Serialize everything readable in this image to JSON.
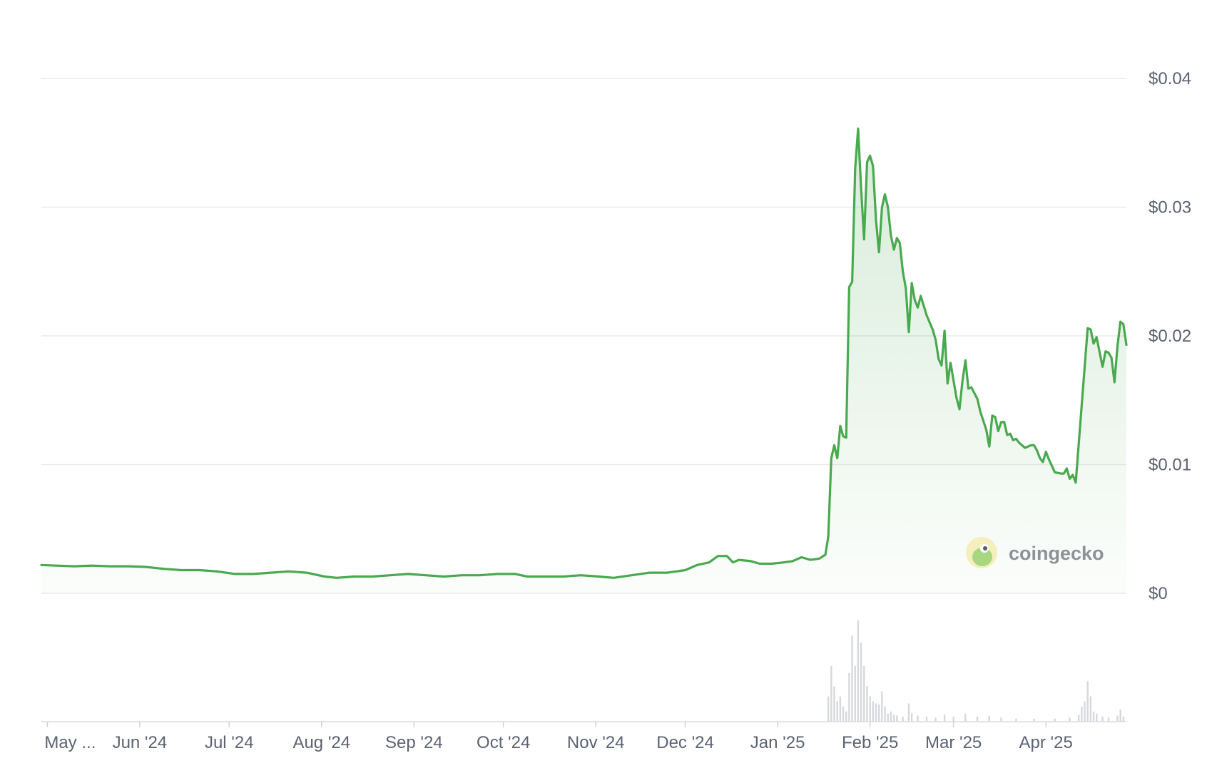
{
  "chart_data": {
    "type": "area",
    "y_axis": {
      "ticks": [
        "$0",
        "$0.01",
        "$0.02",
        "$0.03",
        "$0.04"
      ],
      "tick_values": [
        0,
        0.01,
        0.02,
        0.03,
        0.04
      ],
      "ylim": [
        0,
        0.04
      ],
      "position": "right"
    },
    "x_axis": {
      "ticks": [
        "May ...",
        "Jun '24",
        "Jul '24",
        "Aug '24",
        "Sep '24",
        "Oct '24",
        "Nov '24",
        "Dec '24",
        "Jan '25",
        "Feb '25",
        "Mar '25",
        "Apr '25"
      ],
      "tick_dates": [
        "2024-05-01",
        "2024-06-01",
        "2024-07-01",
        "2024-08-01",
        "2024-09-01",
        "2024-10-01",
        "2024-11-01",
        "2024-12-01",
        "2025-01-01",
        "2025-02-01",
        "2025-03-01",
        "2025-04-01"
      ],
      "range": [
        "2024-04-29",
        "2025-04-28"
      ]
    },
    "grid": true,
    "line_color": "#4aa84f",
    "fill_color": "#4aa84f",
    "volume_color": "#d6d8dc",
    "brand": "coingecko",
    "series": [
      {
        "points": [
          [
            "2024-04-29",
            0.0022
          ],
          [
            "2024-05-04",
            0.00215
          ],
          [
            "2024-05-10",
            0.0021
          ],
          [
            "2024-05-16",
            0.00215
          ],
          [
            "2024-05-22",
            0.0021
          ],
          [
            "2024-05-28",
            0.0021
          ],
          [
            "2024-06-03",
            0.00205
          ],
          [
            "2024-06-09",
            0.0019
          ],
          [
            "2024-06-15",
            0.0018
          ],
          [
            "2024-06-21",
            0.0018
          ],
          [
            "2024-06-27",
            0.0017
          ],
          [
            "2024-07-03",
            0.0015
          ],
          [
            "2024-07-09",
            0.0015
          ],
          [
            "2024-07-15",
            0.0016
          ],
          [
            "2024-07-21",
            0.0017
          ],
          [
            "2024-07-27",
            0.0016
          ],
          [
            "2024-08-02",
            0.0013
          ],
          [
            "2024-08-06",
            0.0012
          ],
          [
            "2024-08-12",
            0.0013
          ],
          [
            "2024-08-18",
            0.0013
          ],
          [
            "2024-08-24",
            0.0014
          ],
          [
            "2024-08-30",
            0.0015
          ],
          [
            "2024-09-05",
            0.0014
          ],
          [
            "2024-09-11",
            0.0013
          ],
          [
            "2024-09-17",
            0.0014
          ],
          [
            "2024-09-23",
            0.0014
          ],
          [
            "2024-09-29",
            0.0015
          ],
          [
            "2024-10-05",
            0.0015
          ],
          [
            "2024-10-09",
            0.0013
          ],
          [
            "2024-10-15",
            0.0013
          ],
          [
            "2024-10-21",
            0.0013
          ],
          [
            "2024-10-27",
            0.0014
          ],
          [
            "2024-11-02",
            0.0013
          ],
          [
            "2024-11-07",
            0.0012
          ],
          [
            "2024-11-13",
            0.0014
          ],
          [
            "2024-11-19",
            0.0016
          ],
          [
            "2024-11-25",
            0.0016
          ],
          [
            "2024-12-01",
            0.0018
          ],
          [
            "2024-12-05",
            0.0022
          ],
          [
            "2024-12-09",
            0.0024
          ],
          [
            "2024-12-12",
            0.0029
          ],
          [
            "2024-12-15",
            0.0029
          ],
          [
            "2024-12-17",
            0.0024
          ],
          [
            "2024-12-19",
            0.0026
          ],
          [
            "2024-12-23",
            0.0025
          ],
          [
            "2024-12-26",
            0.0023
          ],
          [
            "2024-12-30",
            0.0023
          ],
          [
            "2025-01-03",
            0.0024
          ],
          [
            "2025-01-06",
            0.0025
          ],
          [
            "2025-01-09",
            0.0028
          ],
          [
            "2025-01-12",
            0.0026
          ],
          [
            "2025-01-15",
            0.0027
          ],
          [
            "2025-01-17",
            0.003
          ],
          [
            "2025-01-18",
            0.0044
          ],
          [
            "2025-01-19",
            0.0105
          ],
          [
            "2025-01-20",
            0.0115
          ],
          [
            "2025-01-21",
            0.0105
          ],
          [
            "2025-01-22",
            0.013
          ],
          [
            "2025-01-23",
            0.0122
          ],
          [
            "2025-01-24",
            0.0121
          ],
          [
            "2025-01-25",
            0.0238
          ],
          [
            "2025-01-26",
            0.0242
          ],
          [
            "2025-01-27",
            0.033
          ],
          [
            "2025-01-28",
            0.0361
          ],
          [
            "2025-01-29",
            0.0315
          ],
          [
            "2025-01-30",
            0.0275
          ],
          [
            "2025-01-31",
            0.0335
          ],
          [
            "2025-02-01",
            0.034
          ],
          [
            "2025-02-02",
            0.0332
          ],
          [
            "2025-02-03",
            0.029
          ],
          [
            "2025-02-04",
            0.0265
          ],
          [
            "2025-02-05",
            0.03
          ],
          [
            "2025-02-06",
            0.031
          ],
          [
            "2025-02-07",
            0.03
          ],
          [
            "2025-02-08",
            0.0278
          ],
          [
            "2025-02-09",
            0.0267
          ],
          [
            "2025-02-10",
            0.0276
          ],
          [
            "2025-02-11",
            0.0272
          ],
          [
            "2025-02-12",
            0.025
          ],
          [
            "2025-02-13",
            0.0237
          ],
          [
            "2025-02-14",
            0.0203
          ],
          [
            "2025-02-15",
            0.0241
          ],
          [
            "2025-02-16",
            0.0228
          ],
          [
            "2025-02-17",
            0.0222
          ],
          [
            "2025-02-18",
            0.0231
          ],
          [
            "2025-02-20",
            0.0216
          ],
          [
            "2025-02-22",
            0.0205
          ],
          [
            "2025-02-23",
            0.0197
          ],
          [
            "2025-02-24",
            0.0182
          ],
          [
            "2025-02-25",
            0.0177
          ],
          [
            "2025-02-26",
            0.0204
          ],
          [
            "2025-02-27",
            0.0163
          ],
          [
            "2025-02-28",
            0.0179
          ],
          [
            "2025-03-02",
            0.0152
          ],
          [
            "2025-03-03",
            0.0143
          ],
          [
            "2025-03-04",
            0.0165
          ],
          [
            "2025-03-05",
            0.0181
          ],
          [
            "2025-03-06",
            0.0159
          ],
          [
            "2025-03-07",
            0.016
          ],
          [
            "2025-03-09",
            0.0151
          ],
          [
            "2025-03-10",
            0.0141
          ],
          [
            "2025-03-12",
            0.0127
          ],
          [
            "2025-03-13",
            0.0114
          ],
          [
            "2025-03-14",
            0.0138
          ],
          [
            "2025-03-15",
            0.0137
          ],
          [
            "2025-03-16",
            0.0126
          ],
          [
            "2025-03-17",
            0.0133
          ],
          [
            "2025-03-18",
            0.0133
          ],
          [
            "2025-03-19",
            0.0123
          ],
          [
            "2025-03-20",
            0.0124
          ],
          [
            "2025-03-21",
            0.0119
          ],
          [
            "2025-03-22",
            0.012
          ],
          [
            "2025-03-23",
            0.0117
          ],
          [
            "2025-03-25",
            0.0113
          ],
          [
            "2025-03-27",
            0.0115
          ],
          [
            "2025-03-28",
            0.0115
          ],
          [
            "2025-03-29",
            0.0111
          ],
          [
            "2025-03-30",
            0.0105
          ],
          [
            "2025-03-31",
            0.0102
          ],
          [
            "2025-04-01",
            0.011
          ],
          [
            "2025-04-02",
            0.0104
          ],
          [
            "2025-04-04",
            0.0094
          ],
          [
            "2025-04-06",
            0.0093
          ],
          [
            "2025-04-07",
            0.0093
          ],
          [
            "2025-04-08",
            0.0097
          ],
          [
            "2025-04-09",
            0.0089
          ],
          [
            "2025-04-10",
            0.0092
          ],
          [
            "2025-04-11",
            0.0086
          ],
          [
            "2025-04-15",
            0.0206
          ],
          [
            "2025-04-16",
            0.0205
          ],
          [
            "2025-04-17",
            0.0194
          ],
          [
            "2025-04-18",
            0.0199
          ],
          [
            "2025-04-20",
            0.0176
          ],
          [
            "2025-04-21",
            0.0188
          ],
          [
            "2025-04-22",
            0.0187
          ],
          [
            "2025-04-23",
            0.0183
          ],
          [
            "2025-04-24",
            0.0164
          ],
          [
            "2025-04-25",
            0.0192
          ],
          [
            "2025-04-26",
            0.0211
          ],
          [
            "2025-04-27",
            0.0209
          ],
          [
            "2025-04-28",
            0.0193
          ]
        ]
      }
    ],
    "volume": [
      [
        "2025-01-18",
        0.25
      ],
      [
        "2025-01-19",
        0.55
      ],
      [
        "2025-01-20",
        0.35
      ],
      [
        "2025-01-21",
        0.2
      ],
      [
        "2025-01-22",
        0.25
      ],
      [
        "2025-01-23",
        0.15
      ],
      [
        "2025-01-24",
        0.1
      ],
      [
        "2025-01-25",
        0.48
      ],
      [
        "2025-01-26",
        0.85
      ],
      [
        "2025-01-27",
        0.55
      ],
      [
        "2025-01-28",
        1.0
      ],
      [
        "2025-01-29",
        0.78
      ],
      [
        "2025-01-30",
        0.55
      ],
      [
        "2025-01-31",
        0.35
      ],
      [
        "2025-02-01",
        0.25
      ],
      [
        "2025-02-02",
        0.2
      ],
      [
        "2025-02-03",
        0.18
      ],
      [
        "2025-02-04",
        0.17
      ],
      [
        "2025-02-05",
        0.3
      ],
      [
        "2025-02-06",
        0.15
      ],
      [
        "2025-02-07",
        0.08
      ],
      [
        "2025-02-08",
        0.1
      ],
      [
        "2025-02-09",
        0.07
      ],
      [
        "2025-02-10",
        0.06
      ],
      [
        "2025-02-12",
        0.05
      ],
      [
        "2025-02-14",
        0.18
      ],
      [
        "2025-02-15",
        0.08
      ],
      [
        "2025-02-17",
        0.06
      ],
      [
        "2025-02-20",
        0.05
      ],
      [
        "2025-02-23",
        0.04
      ],
      [
        "2025-02-26",
        0.07
      ],
      [
        "2025-03-01",
        0.05
      ],
      [
        "2025-03-05",
        0.08
      ],
      [
        "2025-03-09",
        0.05
      ],
      [
        "2025-03-13",
        0.06
      ],
      [
        "2025-03-17",
        0.04
      ],
      [
        "2025-03-22",
        0.03
      ],
      [
        "2025-03-28",
        0.03
      ],
      [
        "2025-04-04",
        0.03
      ],
      [
        "2025-04-09",
        0.04
      ],
      [
        "2025-04-12",
        0.07
      ],
      [
        "2025-04-13",
        0.15
      ],
      [
        "2025-04-14",
        0.2
      ],
      [
        "2025-04-15",
        0.4
      ],
      [
        "2025-04-16",
        0.25
      ],
      [
        "2025-04-17",
        0.1
      ],
      [
        "2025-04-18",
        0.08
      ],
      [
        "2025-04-20",
        0.05
      ],
      [
        "2025-04-22",
        0.04
      ],
      [
        "2025-04-25",
        0.06
      ],
      [
        "2025-04-26",
        0.12
      ],
      [
        "2025-04-27",
        0.05
      ]
    ]
  }
}
